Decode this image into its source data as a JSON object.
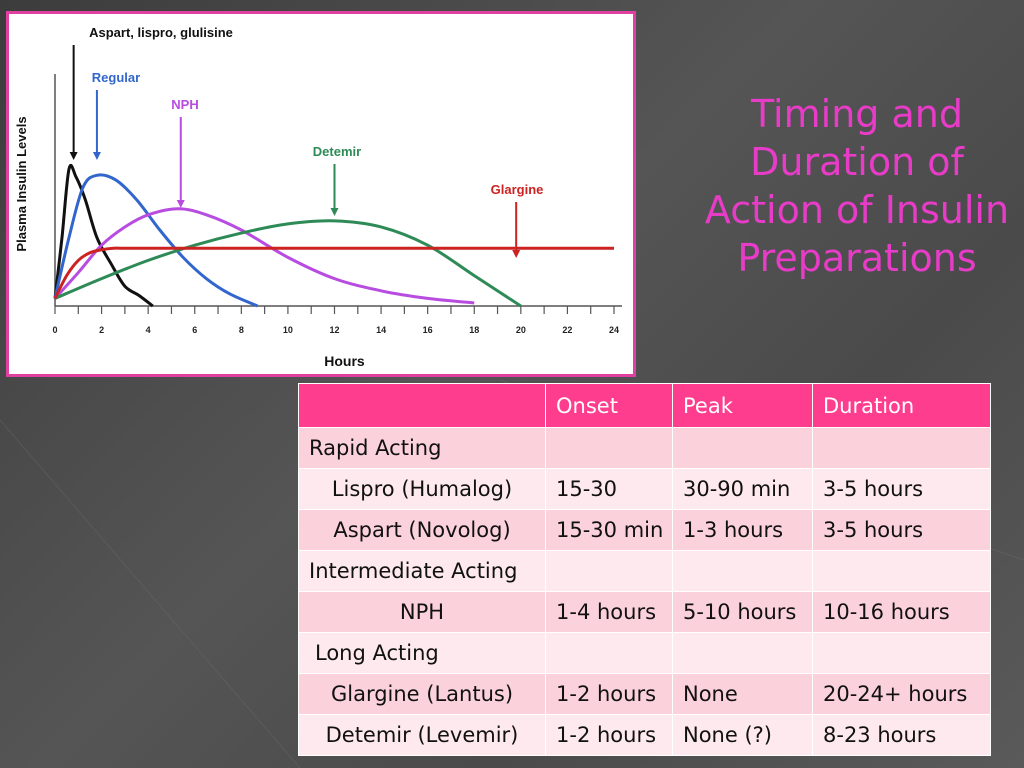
{
  "slide": {
    "title": "Timing and Duration of Action of Insulin Preparations"
  },
  "chart_data": {
    "type": "line",
    "xlabel": "Hours",
    "ylabel": "Plasma Insulin Levels",
    "xticks": [
      0,
      2,
      4,
      6,
      8,
      10,
      12,
      14,
      16,
      18,
      20,
      22,
      24
    ],
    "xlim": [
      0,
      24
    ],
    "ylim": [
      0,
      1
    ],
    "annotations": [
      {
        "text": "Aspart, lispro, glulisine",
        "x": 0.8,
        "color": "#111111"
      },
      {
        "text": "Regular",
        "x": 1.8,
        "color": "#3366cc"
      },
      {
        "text": "NPH",
        "x": 5.4,
        "color": "#b84ce0"
      },
      {
        "text": "Detemir",
        "x": 12.0,
        "color": "#2e8b57"
      },
      {
        "text": "Glargine",
        "x": 19.8,
        "color": "#cc2222"
      }
    ],
    "series": [
      {
        "name": "Aspart, lispro, glulisine",
        "color": "#111111",
        "x": [
          0,
          0.3,
          0.6,
          0.9,
          1.3,
          1.8,
          2.4,
          3.0,
          3.6,
          4.2
        ],
        "y": [
          0.05,
          0.45,
          0.9,
          0.85,
          0.7,
          0.45,
          0.28,
          0.13,
          0.07,
          0.0
        ]
      },
      {
        "name": "Regular",
        "color": "#3366cc",
        "x": [
          0,
          0.6,
          1.2,
          1.8,
          2.6,
          3.5,
          4.5,
          5.5,
          6.5,
          7.5,
          8.7
        ],
        "y": [
          0.05,
          0.45,
          0.78,
          0.86,
          0.83,
          0.7,
          0.5,
          0.32,
          0.18,
          0.08,
          0.0
        ]
      },
      {
        "name": "NPH",
        "color": "#b84ce0",
        "x": [
          0,
          1,
          2,
          3,
          4,
          5.3,
          6.5,
          8,
          10,
          12,
          14,
          16,
          18
        ],
        "y": [
          0.05,
          0.22,
          0.4,
          0.52,
          0.6,
          0.64,
          0.6,
          0.5,
          0.32,
          0.18,
          0.1,
          0.05,
          0.02
        ]
      },
      {
        "name": "Detemir",
        "color": "#2e8b57",
        "x": [
          0,
          2,
          4,
          6,
          8,
          10,
          12,
          14,
          16,
          18,
          20
        ],
        "y": [
          0.05,
          0.18,
          0.3,
          0.4,
          0.48,
          0.54,
          0.56,
          0.52,
          0.4,
          0.2,
          0.0
        ]
      },
      {
        "name": "Glargine",
        "color": "#cc2222",
        "x": [
          0,
          0.5,
          1,
          1.5,
          2,
          2.5,
          3,
          5,
          10,
          15,
          20,
          24
        ],
        "y": [
          0.05,
          0.2,
          0.3,
          0.35,
          0.37,
          0.38,
          0.38,
          0.38,
          0.38,
          0.38,
          0.38,
          0.38
        ]
      }
    ]
  },
  "table": {
    "headers": [
      "",
      "Onset",
      "Peak",
      "Duration"
    ],
    "rows": [
      {
        "name": "Rapid Acting",
        "onset": "",
        "peak": "",
        "duration": ""
      },
      {
        "name": "Lispro (Humalog)",
        "onset": "15-30",
        "peak": "30-90 min",
        "duration": "3-5 hours"
      },
      {
        "name": "Aspart (Novolog)",
        "onset": "15-30 min",
        "peak": "1-3 hours",
        "duration": "3-5 hours"
      },
      {
        "name": "Intermediate Acting",
        "onset": "",
        "peak": "",
        "duration": ""
      },
      {
        "name": "NPH",
        "onset": "1-4 hours",
        "peak": "5-10 hours",
        "duration": "10-16 hours"
      },
      {
        "name": "Long Acting",
        "onset": "",
        "peak": "",
        "duration": ""
      },
      {
        "name": "Glargine (Lantus)",
        "onset": "1-2 hours",
        "peak": "None",
        "duration": "20-24+ hours"
      },
      {
        "name": "Detemir (Levemir)",
        "onset": "1-2 hours",
        "peak": "None (?)",
        "duration": "8-23  hours"
      }
    ]
  }
}
